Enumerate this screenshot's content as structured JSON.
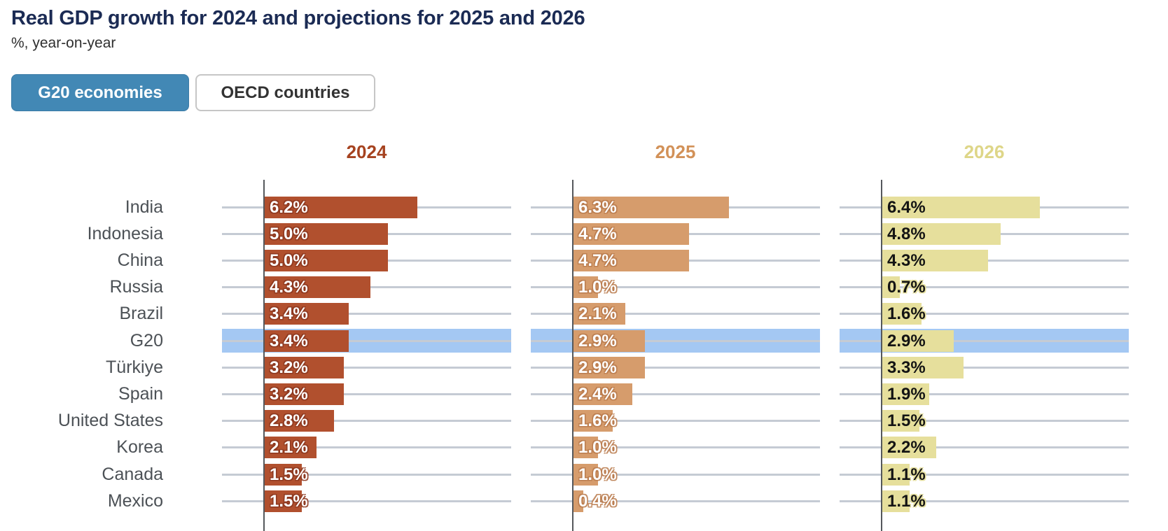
{
  "title": "Real GDP growth for 2024 and projections for 2025 and 2026",
  "subtitle": "%, year-on-year",
  "toggle": {
    "options": [
      {
        "label": "G20 economies",
        "selected": true
      },
      {
        "label": "OECD countries",
        "selected": false
      }
    ]
  },
  "colors": {
    "title": "#1b2b54",
    "active_button": "#4288b5",
    "highlight_band": "#a4c8f3",
    "grid_line": "#c5cbd4",
    "axis_line": "#55585c",
    "country_label": "#4c5156"
  },
  "chart_data": {
    "type": "bar",
    "orientation": "horizontal",
    "categories": [
      "India",
      "Indonesia",
      "China",
      "Russia",
      "Brazil",
      "G20",
      "Türkiye",
      "Spain",
      "United States",
      "Korea",
      "Canada",
      "Mexico"
    ],
    "highlighted_category": "G20",
    "highlight_color": "#a4c8f3",
    "value_suffix": "%",
    "xlim": [
      0,
      10
    ],
    "grid": true,
    "series": [
      {
        "name": "2024",
        "bar_color": "#b1502e",
        "header_color": "#a64320",
        "values": [
          6.2,
          5.0,
          5.0,
          4.3,
          3.4,
          3.4,
          3.2,
          3.2,
          2.8,
          2.1,
          1.5,
          1.5
        ]
      },
      {
        "name": "2025",
        "bar_color": "#d69c6c",
        "header_color": "#d29158",
        "values": [
          6.3,
          4.7,
          4.7,
          1.0,
          2.1,
          2.9,
          2.9,
          2.4,
          1.6,
          1.0,
          1.0,
          0.4
        ]
      },
      {
        "name": "2026",
        "bar_color": "#e6df9c",
        "header_color": "#ded688",
        "values": [
          6.4,
          4.8,
          4.3,
          0.7,
          1.6,
          2.9,
          3.3,
          1.9,
          1.5,
          2.2,
          1.1,
          1.1
        ]
      }
    ]
  }
}
